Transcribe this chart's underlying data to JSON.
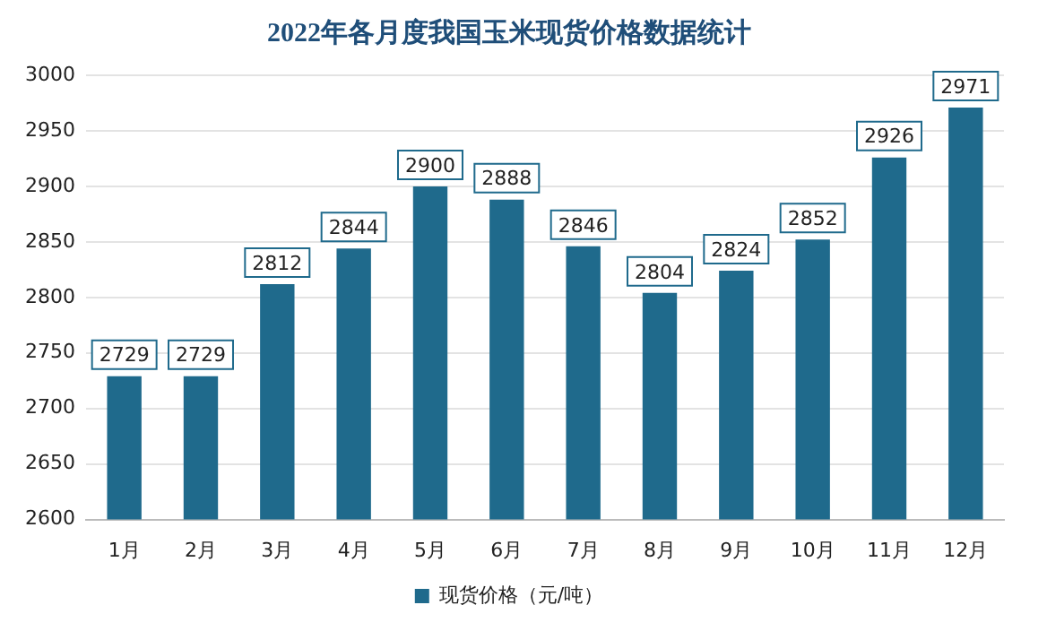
{
  "chart_data": {
    "type": "bar",
    "title": "2022年各月度我国玉米现货价格数据统计",
    "categories": [
      "1月",
      "2月",
      "3月",
      "4月",
      "5月",
      "6月",
      "7月",
      "8月",
      "9月",
      "10月",
      "11月",
      "12月"
    ],
    "series": [
      {
        "name": "现货价格（元/吨）",
        "color": "#1f6a8c",
        "values": [
          2729,
          2729,
          2812,
          2844,
          2900,
          2888,
          2846,
          2804,
          2824,
          2852,
          2926,
          2971
        ]
      }
    ],
    "ylim": [
      2600,
      3000
    ],
    "yticks": [
      2600,
      2650,
      2700,
      2750,
      2800,
      2850,
      2900,
      2950,
      3000
    ],
    "grid": "y",
    "legend": "bottom",
    "data_labels": true
  }
}
